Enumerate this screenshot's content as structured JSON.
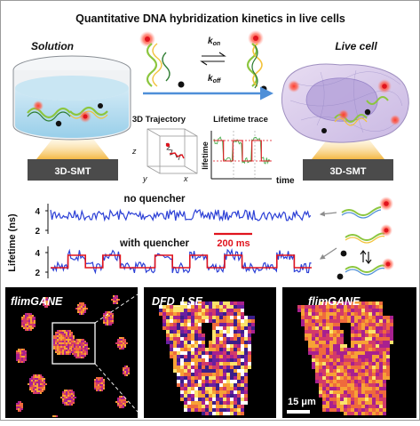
{
  "title": "Quantitative DNA hybridization kinetics in live cells",
  "solution_label": "Solution",
  "live_cell_label": "Live cell",
  "kon_label": "k",
  "kon_sub": "on",
  "koff_label": "k",
  "koff_sub": "off",
  "smt_left_label": "3D-SMT",
  "smt_right_label": "3D-SMT",
  "trajectory_title": "3D Trajectory",
  "trajectory_axes": {
    "z": "z",
    "y": "y",
    "x": "x"
  },
  "lifetime_trace_title": "Lifetime trace",
  "lifetime_trace_ylabel": "lifetime",
  "lifetime_trace_xlabel": "time",
  "traces": {
    "ylabel": "Lifetime (ns)",
    "no_quencher_label": "no quencher",
    "with_quencher_label": "with quencher",
    "scale_bar_label": "200 ms",
    "ticks_top": [
      "4",
      "2"
    ],
    "ticks_bottom": [
      "4",
      "2"
    ]
  },
  "images": {
    "left_label": "flimGANE",
    "middle_label": "DFD_LSE",
    "right_label": "flimGANE",
    "scale_bar_label": "15 μm"
  },
  "colors": {
    "trace_blue": "#2b3fd6",
    "trace_red": "#e0141e",
    "scale_red": "#e0141e",
    "arrow_blue": "#4f8fd8",
    "base_yellow": "#f3b43a"
  }
}
